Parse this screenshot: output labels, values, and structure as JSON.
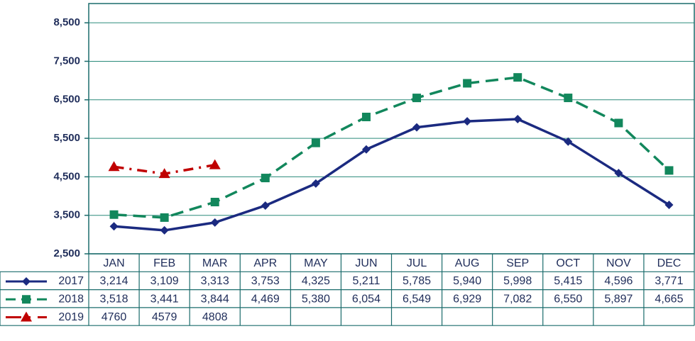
{
  "chart_data": {
    "type": "line",
    "categories": [
      "JAN",
      "FEB",
      "MAR",
      "APR",
      "MAY",
      "JUN",
      "JUL",
      "AUG",
      "SEP",
      "OCT",
      "NOV",
      "DEC"
    ],
    "ylim": [
      2500,
      9000
    ],
    "yticks": [
      {
        "value": 2500,
        "label": "2,500"
      },
      {
        "value": 3500,
        "label": "3,500"
      },
      {
        "value": 4500,
        "label": "4,500"
      },
      {
        "value": 5500,
        "label": "5,500"
      },
      {
        "value": 6500,
        "label": "6,500"
      },
      {
        "value": 7500,
        "label": "7,500"
      },
      {
        "value": 8500,
        "label": "8,500"
      }
    ],
    "grid": true,
    "series": [
      {
        "name": "2017",
        "color": "#1b2a80",
        "dash": "solid",
        "marker": "diamond",
        "values": [
          3214,
          3109,
          3313,
          3753,
          4325,
          5211,
          5785,
          5940,
          5998,
          5415,
          4596,
          3771
        ],
        "value_labels": [
          "3,214",
          "3,109",
          "3,313",
          "3,753",
          "4,325",
          "5,211",
          "5,785",
          "5,940",
          "5,998",
          "5,415",
          "4,596",
          "3,771"
        ]
      },
      {
        "name": "2018",
        "color": "#12875c",
        "dash": "dash",
        "marker": "square",
        "values": [
          3518,
          3441,
          3844,
          4469,
          5380,
          6054,
          6549,
          6929,
          7082,
          6550,
          5897,
          4665
        ],
        "value_labels": [
          "3,518",
          "3,441",
          "3,844",
          "4,469",
          "5,380",
          "6,054",
          "6,549",
          "6,929",
          "7,082",
          "6,550",
          "5,897",
          "4,665"
        ]
      },
      {
        "name": "2019",
        "color": "#c00000",
        "dash": "dashdot",
        "marker": "triangle",
        "values": [
          4760,
          4579,
          4808,
          null,
          null,
          null,
          null,
          null,
          null,
          null,
          null,
          null
        ]
      }
    ]
  }
}
